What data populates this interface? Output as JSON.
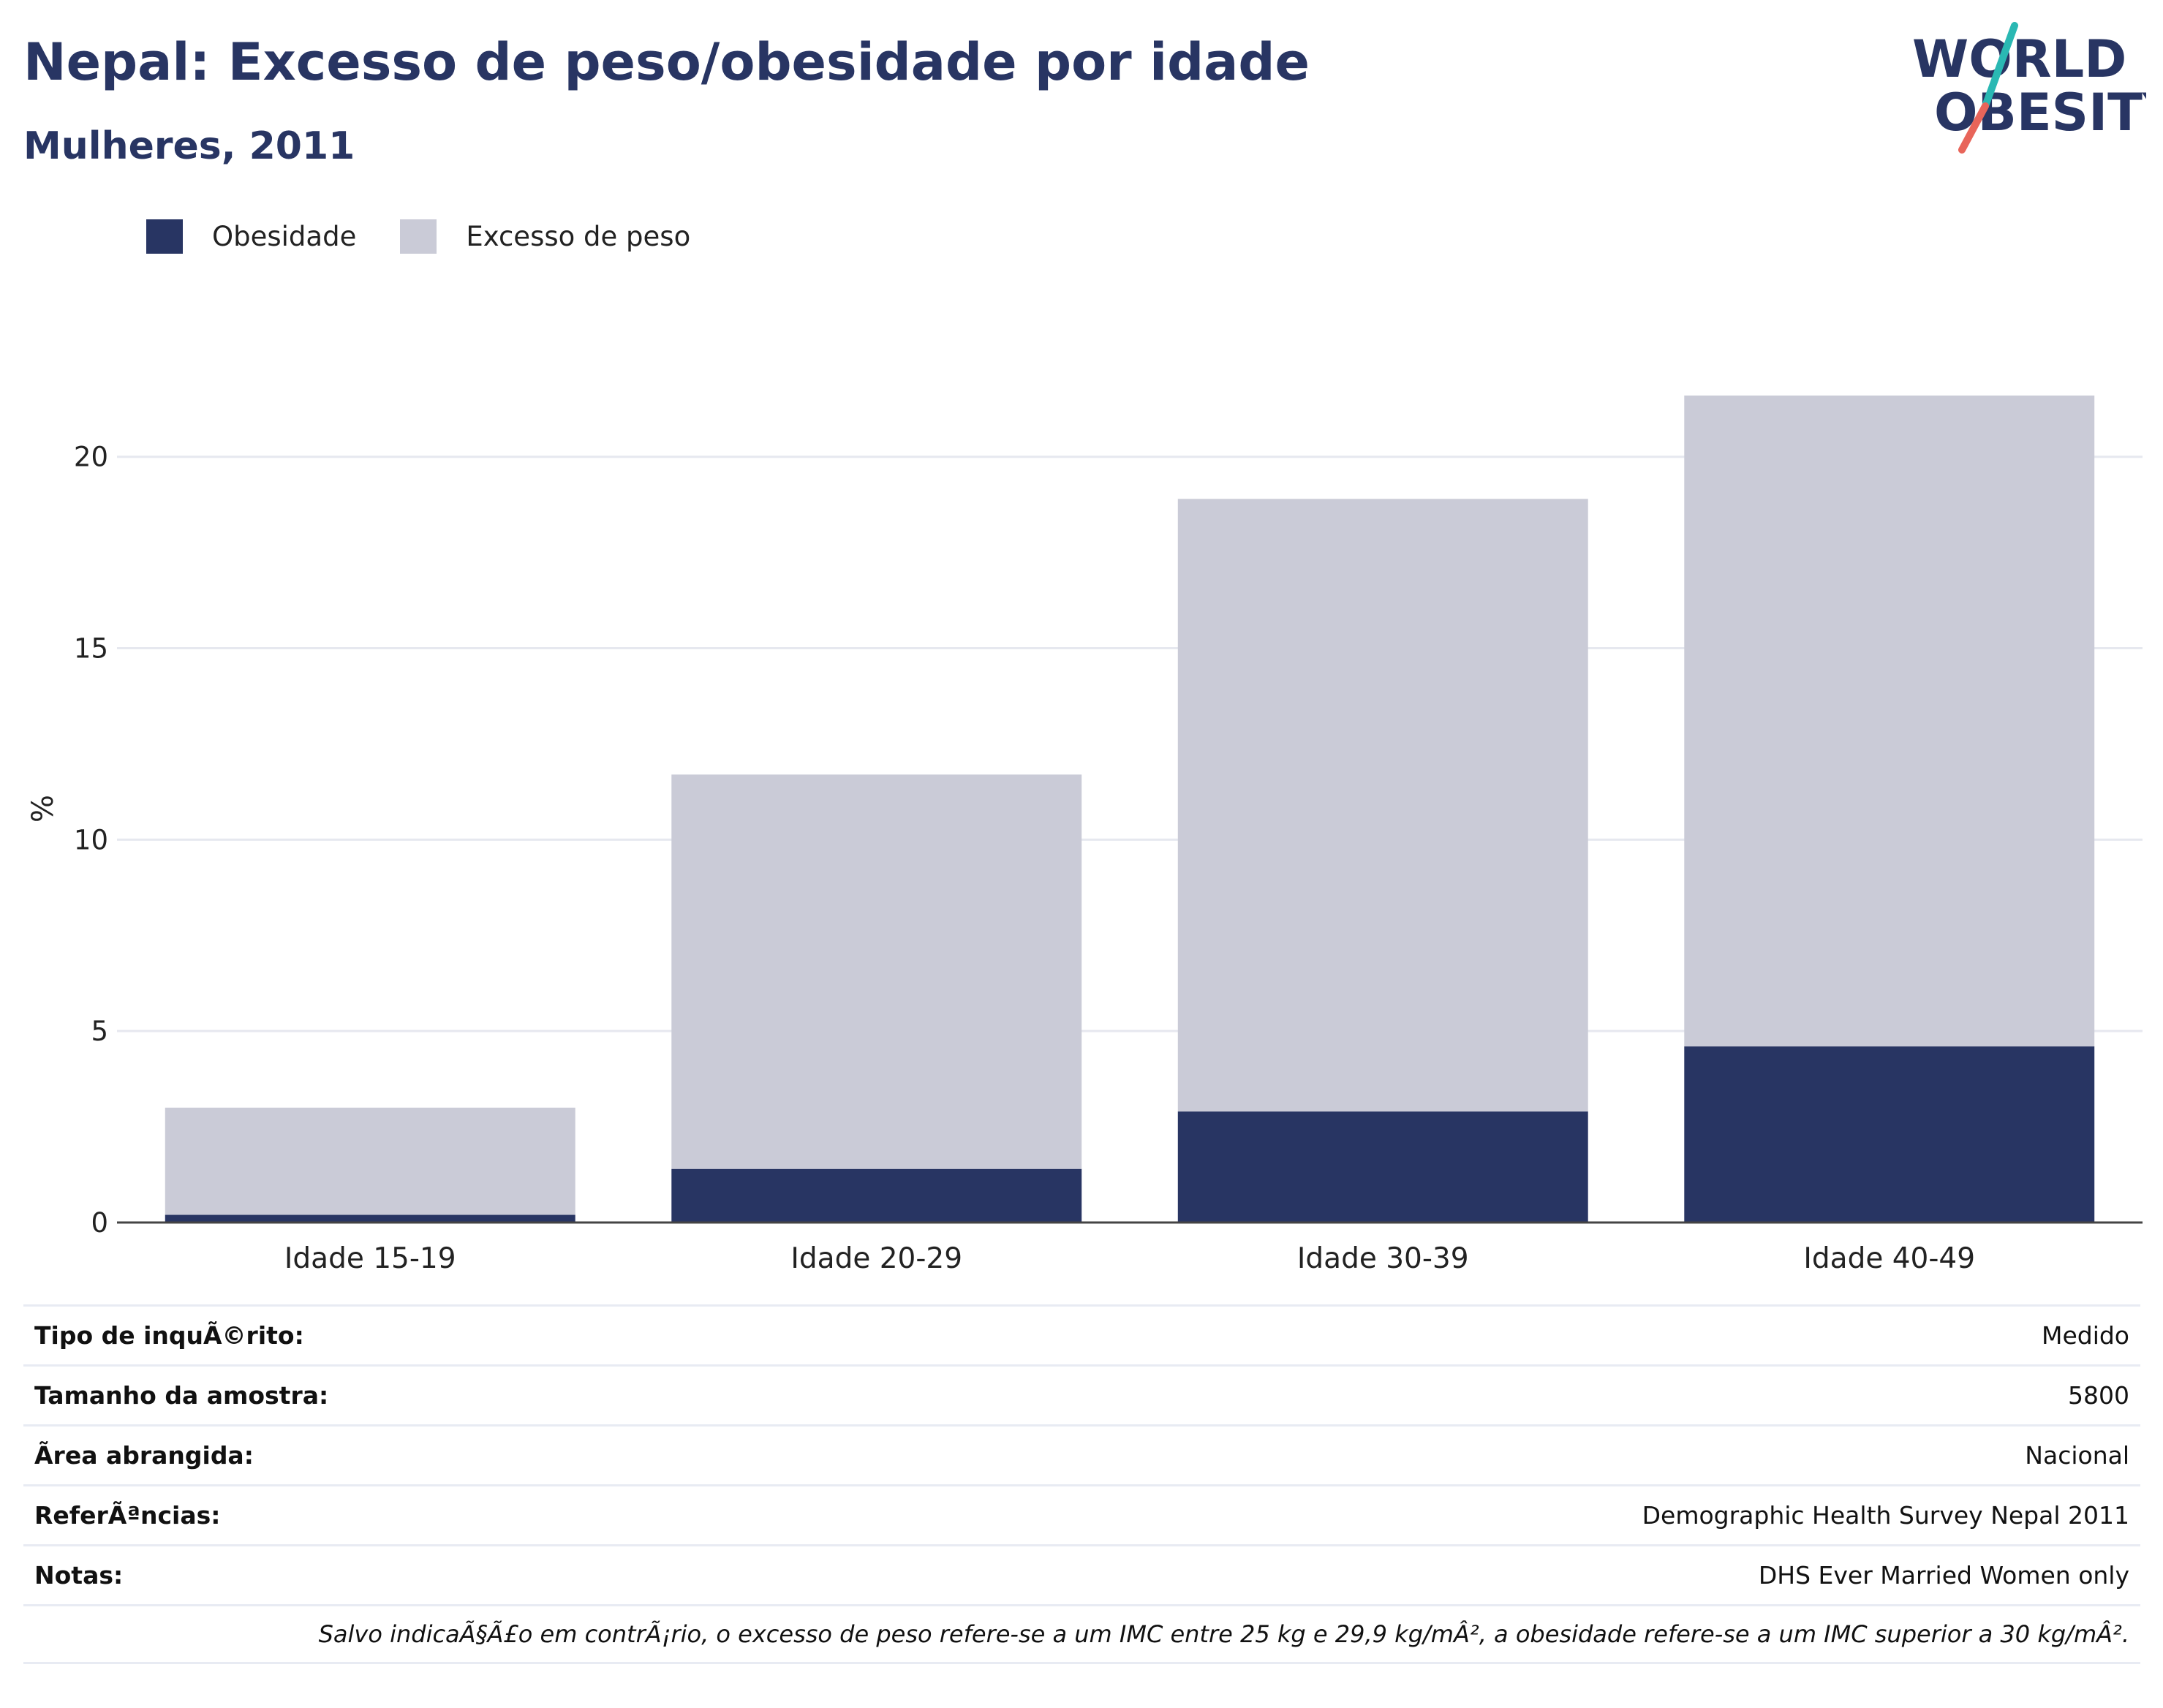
{
  "header": {
    "title": "Nepal: Excesso de peso/obesidade por idade",
    "subtitle": "Mulheres, 2011"
  },
  "logo": {
    "line1": "WORLD",
    "line2": "OBESITY",
    "colors": {
      "text": "#283563",
      "slash_top": "#2ab8b3",
      "slash_bottom": "#e8655a"
    }
  },
  "legend": [
    {
      "label": "Obesidade",
      "color": "#283563"
    },
    {
      "label": "Excesso de peso",
      "color": "#cacbd7"
    }
  ],
  "chart_data": {
    "type": "bar",
    "stacked": true,
    "categories": [
      "Idade 15-19",
      "Idade 20-29",
      "Idade 30-39",
      "Idade 40-49"
    ],
    "series": [
      {
        "name": "Obesidade",
        "color": "#283563",
        "values": [
          0.2,
          1.4,
          2.9,
          4.6
        ]
      },
      {
        "name": "Excesso de peso",
        "color": "#cacbd7",
        "values": [
          2.8,
          10.3,
          16.0,
          17.0
        ]
      }
    ],
    "ylabel": "%",
    "ylim": [
      0,
      22
    ],
    "yticks": [
      0,
      5,
      10,
      15,
      20
    ],
    "grid": true,
    "legend_position": "top-left"
  },
  "info": {
    "rows": [
      {
        "label": "Tipo de inquÃ©rito:",
        "value": "Medido"
      },
      {
        "label": "Tamanho da amostra:",
        "value": "5800"
      },
      {
        "label": "Ã\u001frea abrangida:",
        "value": "Nacional"
      },
      {
        "label": "ReferÃªncias:",
        "value": "Demographic Health Survey Nepal 2011"
      },
      {
        "label": "Notas:",
        "value": "DHS Ever Married Women only"
      }
    ],
    "footnote": "Salvo indicaÃ§Ã£o em contrÃ¡rio, o excesso de peso refere-se a um IMC entre 25 kg e 29,9 kg/mÂ², a obesidade refere-se a um IMC superior a 30 kg/mÂ²."
  }
}
